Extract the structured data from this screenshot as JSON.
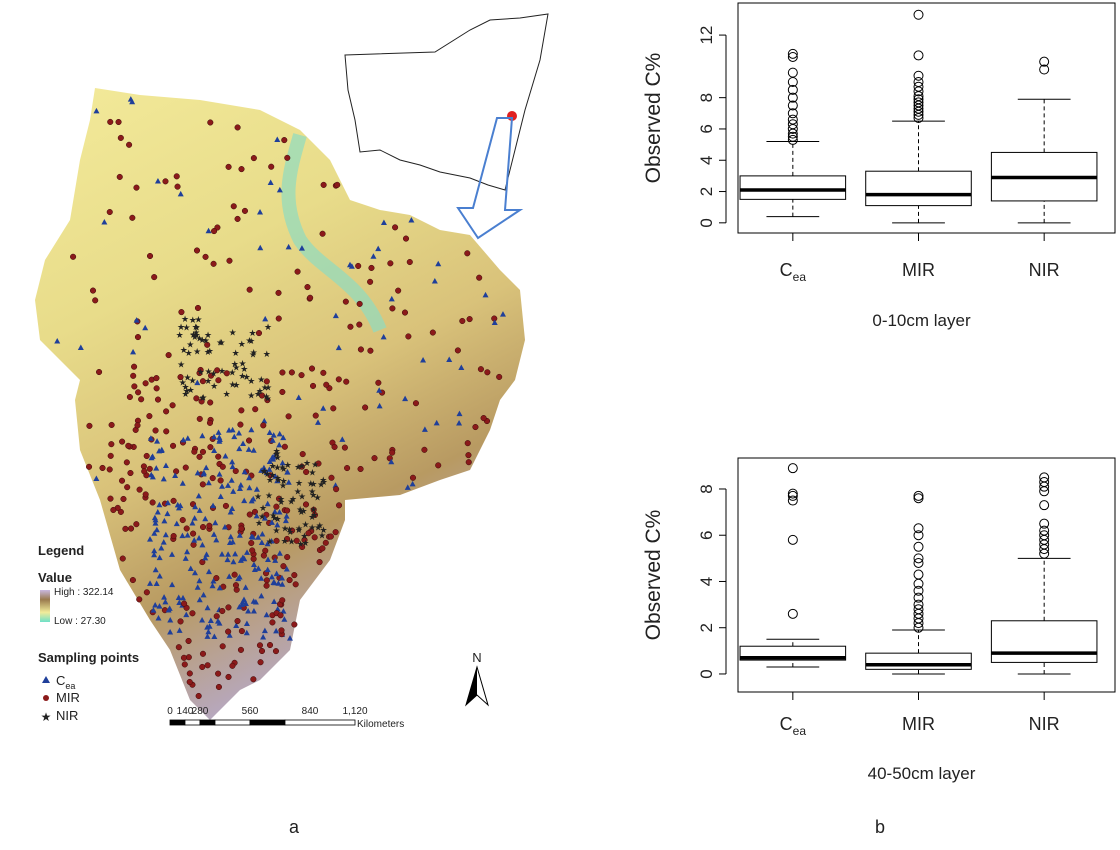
{
  "panel_labels": {
    "a": "a",
    "b": "b"
  },
  "map": {
    "legend_title": "Legend",
    "value_title": "Value",
    "high_label": "High : 322.14",
    "low_label": "Low : 27.30",
    "sampling_title": "Sampling points",
    "points": [
      [
        "C",
        "ea"
      ],
      [
        "MIR"
      ],
      [
        "NIR"
      ]
    ],
    "scale_labels": [
      "0",
      "140",
      "280",
      "560",
      "840",
      "1,120"
    ],
    "scale_unit": "Kilometers",
    "north": "N"
  },
  "chart_data": [
    {
      "type": "boxplot",
      "x_label": "0-10cm layer",
      "y_label": "Observed C%",
      "categories": [
        [
          "C",
          "ea"
        ],
        [
          "MIR"
        ],
        [
          "NIR"
        ]
      ],
      "ylim": [
        -0.65,
        14.05
      ],
      "yticks": [
        0,
        2,
        4,
        6,
        8,
        12
      ],
      "boxes": [
        {
          "min": 0.4,
          "q1": 1.5,
          "median": 2.1,
          "q3": 3.0,
          "max": 5.2,
          "outliers": [
            5.3,
            5.5,
            5.7,
            6.0,
            6.3,
            6.6,
            7.0,
            7.5,
            8.0,
            8.5,
            9.0,
            9.6,
            10.6,
            10.8
          ]
        },
        {
          "min": 0.0,
          "q1": 1.1,
          "median": 1.8,
          "q3": 3.3,
          "max": 6.5,
          "outliers": [
            6.7,
            6.9,
            7.1,
            7.3,
            7.5,
            7.7,
            7.9,
            8.1,
            8.4,
            8.7,
            9.0,
            9.4,
            10.7,
            13.3
          ]
        },
        {
          "min": 0.0,
          "q1": 1.4,
          "median": 2.9,
          "q3": 4.5,
          "max": 7.9,
          "outliers": [
            9.8,
            10.3
          ]
        }
      ]
    },
    {
      "type": "boxplot",
      "x_label": "40-50cm layer",
      "y_label": "Observed C%",
      "categories": [
        [
          "C",
          "ea"
        ],
        [
          "MIR"
        ],
        [
          "NIR"
        ]
      ],
      "ylim": [
        -0.78,
        9.34
      ],
      "yticks": [
        0,
        2,
        4,
        6,
        8
      ],
      "boxes": [
        {
          "min": 0.3,
          "q1": 0.6,
          "median": 0.7,
          "q3": 1.2,
          "max": 1.5,
          "outliers": [
            2.6,
            5.8,
            7.5,
            7.7,
            7.8,
            8.9
          ]
        },
        {
          "min": 0.0,
          "q1": 0.2,
          "median": 0.4,
          "q3": 0.9,
          "max": 1.9,
          "outliers": [
            2.0,
            2.2,
            2.4,
            2.6,
            2.8,
            3.0,
            3.3,
            3.6,
            3.9,
            4.3,
            4.8,
            5.0,
            5.5,
            6.0,
            6.3,
            7.6,
            7.7
          ]
        },
        {
          "min": 0.0,
          "q1": 0.5,
          "median": 0.9,
          "q3": 2.3,
          "max": 5.0,
          "outliers": [
            5.2,
            5.4,
            5.6,
            5.8,
            6.0,
            6.2,
            6.5,
            7.3,
            7.9,
            8.1,
            8.3,
            8.5
          ]
        }
      ]
    }
  ]
}
